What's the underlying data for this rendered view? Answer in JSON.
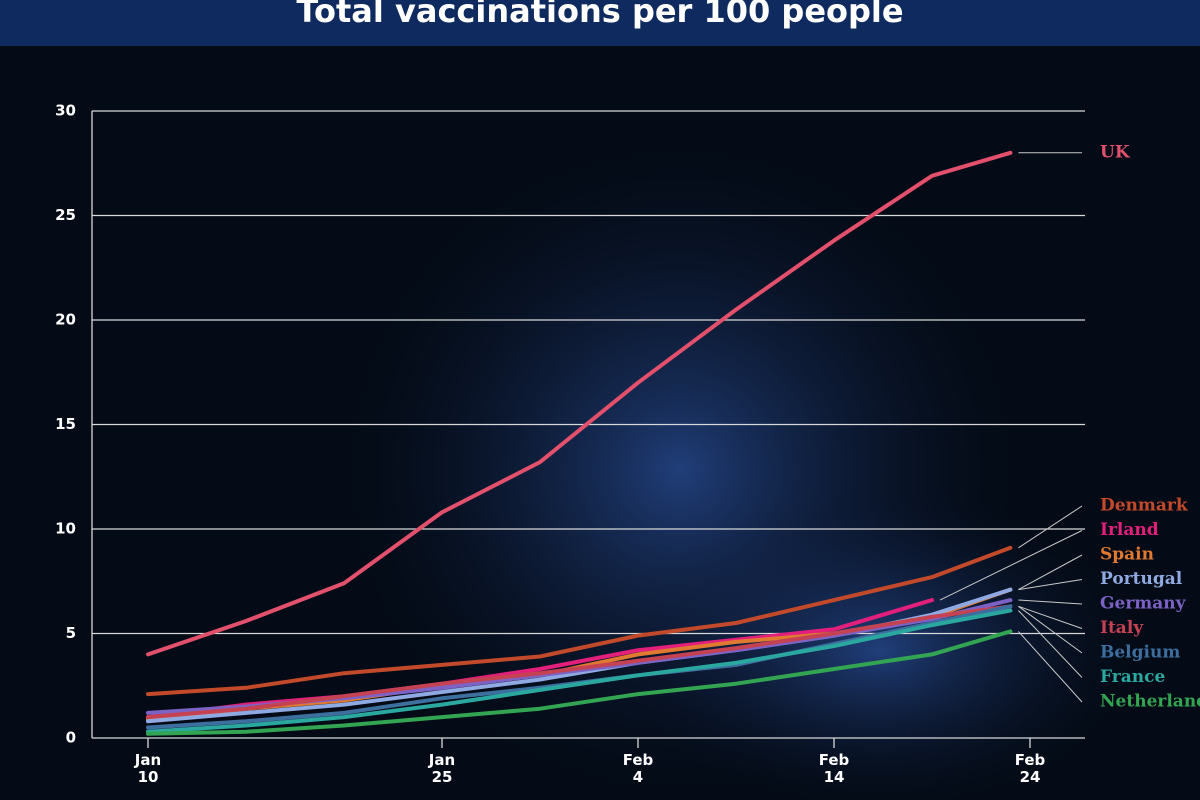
{
  "chart_data": {
    "type": "line",
    "title": "Total vaccinations per 100 people",
    "x": [
      "Jan 10",
      "Jan 15",
      "Jan 20",
      "Jan 25",
      "Jan 30",
      "Feb 4",
      "Feb 9",
      "Feb 14",
      "Feb 19",
      "Feb 23"
    ],
    "xticks": [
      "Jan 10",
      "Jan 25",
      "Feb 4",
      "Feb 14",
      "Feb 24"
    ],
    "ylim": [
      0,
      30
    ],
    "yticks": [
      0,
      5,
      10,
      15,
      20,
      25,
      30
    ],
    "grid": true,
    "series": [
      {
        "name": "UK",
        "color": "#e2506c",
        "values": [
          4.0,
          5.6,
          7.4,
          10.8,
          13.2,
          17.0,
          20.5,
          23.8,
          26.9,
          28.0
        ]
      },
      {
        "name": "Denmark",
        "color": "#c24a2a",
        "values": [
          2.1,
          2.4,
          3.1,
          3.5,
          3.9,
          4.9,
          5.5,
          6.6,
          7.7,
          9.1
        ]
      },
      {
        "name": "Irland",
        "color": "#e2207c",
        "values": [
          1.0,
          1.6,
          2.0,
          2.6,
          3.3,
          4.2,
          4.7,
          5.2,
          6.6,
          null
        ]
      },
      {
        "name": "Spain",
        "color": "#e07a30",
        "values": [
          0.9,
          1.4,
          1.8,
          2.5,
          3.0,
          4.0,
          4.6,
          5.0,
          5.8,
          7.1
        ]
      },
      {
        "name": "Portugal",
        "color": "#8faae2",
        "values": [
          0.8,
          1.2,
          1.6,
          2.2,
          2.8,
          3.6,
          4.2,
          4.9,
          5.9,
          7.1
        ]
      },
      {
        "name": "Germany",
        "color": "#7c62c4",
        "values": [
          1.2,
          1.5,
          1.9,
          2.4,
          3.0,
          3.6,
          4.2,
          4.9,
          5.7,
          6.6
        ]
      },
      {
        "name": "Italy",
        "color": "#c44252",
        "values": [
          1.0,
          1.4,
          2.0,
          2.6,
          3.1,
          3.7,
          4.3,
          5.0,
          5.8,
          6.3
        ]
      },
      {
        "name": "Belgium",
        "color": "#3c6e9e",
        "values": [
          0.5,
          0.8,
          1.2,
          1.9,
          2.4,
          3.0,
          3.5,
          4.5,
          5.5,
          6.3
        ]
      },
      {
        "name": "France",
        "color": "#2aa8a0",
        "values": [
          0.3,
          0.6,
          1.0,
          1.6,
          2.3,
          3.0,
          3.6,
          4.4,
          5.4,
          6.1
        ]
      },
      {
        "name": "Netherlands",
        "color": "#32a452",
        "values": [
          0.2,
          0.3,
          0.6,
          1.0,
          1.4,
          2.1,
          2.6,
          3.3,
          4.0,
          5.1
        ]
      }
    ]
  }
}
